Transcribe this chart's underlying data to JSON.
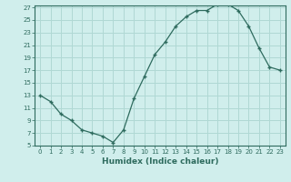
{
  "xlabel": "Humidex (Indice chaleur)",
  "x": [
    0,
    1,
    2,
    3,
    4,
    5,
    6,
    7,
    8,
    9,
    10,
    11,
    12,
    13,
    14,
    15,
    16,
    17,
    18,
    19,
    20,
    21,
    22,
    23
  ],
  "y": [
    13,
    12,
    10,
    9,
    7.5,
    7,
    6.5,
    5.5,
    7.5,
    12.5,
    16,
    19.5,
    21.5,
    24,
    25.5,
    26.5,
    26.5,
    27.5,
    27.5,
    26.5,
    24,
    20.5,
    17.5,
    17
  ],
  "line_color": "#2e6b5e",
  "marker": "+",
  "bg_color": "#d0eeec",
  "grid_color": "#b0d8d4",
  "tick_label_color": "#2e6b5e",
  "xlabel_color": "#2e6b5e",
  "ylim": [
    5,
    27
  ],
  "yticks": [
    5,
    7,
    9,
    11,
    13,
    15,
    17,
    19,
    21,
    23,
    25,
    27
  ],
  "xticks": [
    0,
    1,
    2,
    3,
    4,
    5,
    6,
    7,
    8,
    9,
    10,
    11,
    12,
    13,
    14,
    15,
    16,
    17,
    18,
    19,
    20,
    21,
    22,
    23
  ]
}
